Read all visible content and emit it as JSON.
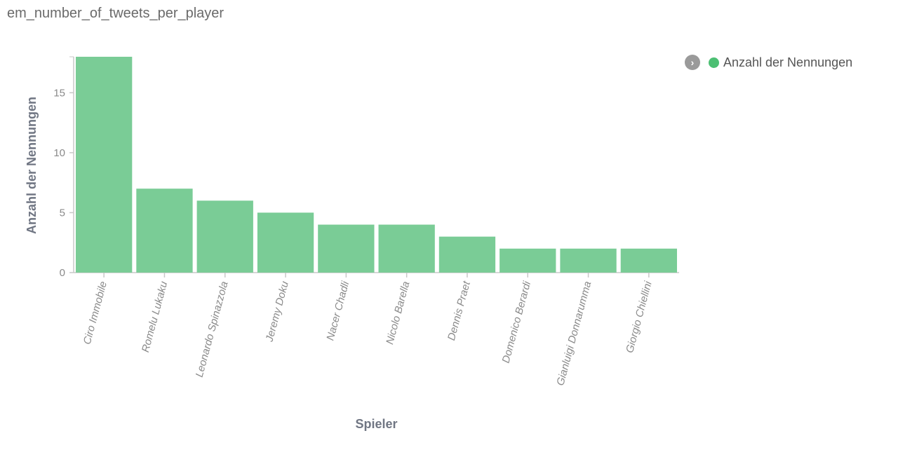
{
  "title": "em_number_of_tweets_per_player",
  "legend": {
    "label": "Anzahl der Nennungen",
    "toggle_icon": "chevron-right-icon"
  },
  "colors": {
    "bar": "#7acc96",
    "legend_dot": "#4cbf73",
    "axis": "#c8c8c8",
    "tick_text": "#8a8a8a",
    "label_text": "#707683"
  },
  "chart_data": {
    "type": "bar",
    "title": "em_number_of_tweets_per_player",
    "xlabel": "Spieler",
    "ylabel": "Anzahl der Nennungen",
    "categories": [
      "Ciro Immobile",
      "Romelu Lukaku",
      "Leonardo Spinazzola",
      "Jeremy Doku",
      "Nacer Chadli",
      "Nicolo Barella",
      "Dennis Praet",
      "Domenico Berardi",
      "Gianluigi Donnarumma",
      "Giorgio Chiellini"
    ],
    "series": [
      {
        "name": "Anzahl der Nennungen",
        "values": [
          18,
          7,
          6,
          5,
          4,
          4,
          3,
          2,
          2,
          2
        ]
      }
    ],
    "yticks": [
      0,
      5,
      10,
      15
    ],
    "ylim": [
      0,
      18
    ],
    "grid": false,
    "legend_position": "top-right"
  }
}
